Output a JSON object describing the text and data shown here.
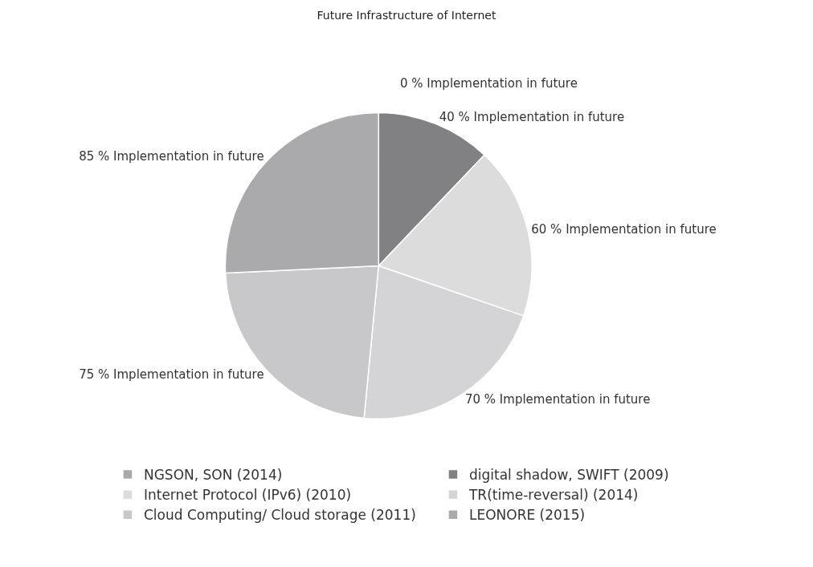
{
  "chart_data": {
    "type": "pie",
    "title": "Future Infrastructure of Internet",
    "categories": [
      "NGSON, SON (2014)",
      "digital shadow, SWIFT (2009)",
      "Internet Protocol (IPv6) (2010)",
      "TR(time-reversal) (2014)",
      "Cloud Computing/ Cloud storage (2011)",
      "LEONORE (2015)"
    ],
    "values": [
      0,
      40,
      60,
      70,
      75,
      85
    ],
    "colors": [
      "#a9a9ab",
      "#818184",
      "#dcdcdd",
      "#d4d4d6",
      "#c8c8ca",
      "#aaaaac"
    ],
    "value_labels": [
      "0 % Implementation in future",
      "40 % Implementation in future",
      "60 % Implementation in future",
      "70 % Implementation in future",
      "75 % Implementation in future",
      "85 % Implementation in future"
    ],
    "legend": "bottom"
  }
}
